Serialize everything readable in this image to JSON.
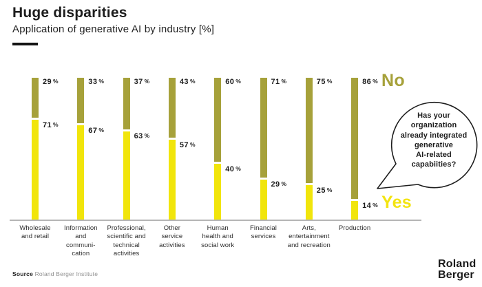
{
  "header": {
    "title": "Huge disparities",
    "subtitle": "Application of generative AI by industry [%]"
  },
  "chart_data": {
    "type": "bar",
    "stacked": true,
    "orientation": "vertical",
    "unit": "%",
    "title": "Huge disparities",
    "subtitle": "Application of generative AI by industry [%]",
    "categories": [
      "Wholesale\nand retail",
      "Information\nand\ncommuni-\ncation",
      "Professional,\nscientific and\ntechnical\nactivities",
      "Other\nservice\nactivities",
      "Human\nhealth and\nsocial work",
      "Financial\nservices",
      "Arts,\nentertainment\nand recreation",
      "Production"
    ],
    "series": [
      {
        "name": "No",
        "color": "#a6a13a",
        "values": [
          29,
          33,
          37,
          43,
          60,
          71,
          75,
          86
        ]
      },
      {
        "name": "Yes",
        "color": "#f1e50b",
        "values": [
          71,
          67,
          63,
          57,
          40,
          29,
          25,
          14
        ]
      }
    ],
    "ylim": [
      0,
      100
    ],
    "grid": false,
    "legend_position": "right",
    "value_labels": true,
    "annotation": "Has your\norganization\nalready integrated\ngenerative\nAI-related\ncapabiities?"
  },
  "legend": {
    "no_label": "No",
    "no_color": "#a6a13a",
    "yes_label": "Yes",
    "yes_color": "#f3e411"
  },
  "speech_bubble": {
    "text": "Has your\norganization\nalready integrated\ngenerative\nAI-related\ncapabiities?"
  },
  "footer": {
    "source_label": "Source",
    "source_text": "Roland Berger Institute",
    "logo_line1": "Roland",
    "logo_line2": "Berger"
  }
}
